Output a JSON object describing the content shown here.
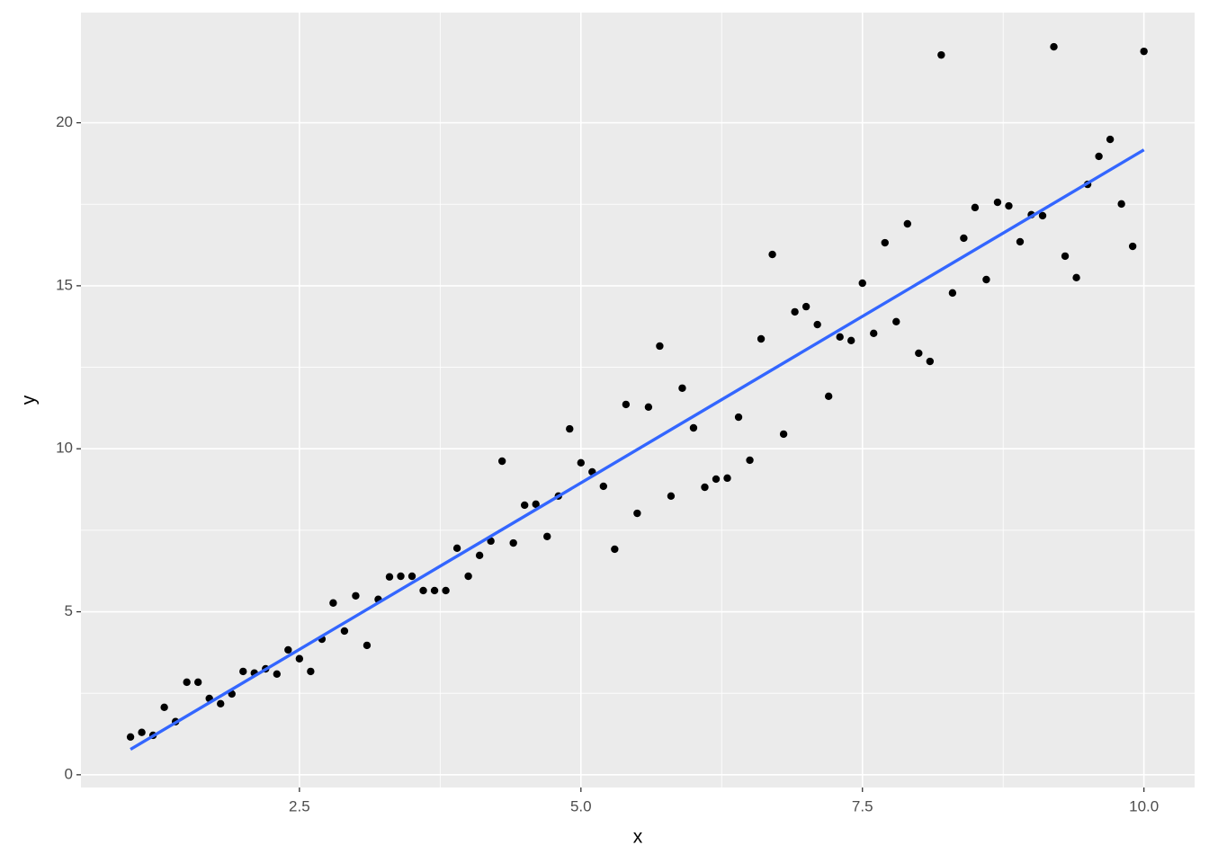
{
  "chart_data": {
    "type": "scatter",
    "x_label": "x",
    "y_label": "y",
    "x": [
      1.0,
      1.1,
      1.2,
      1.3,
      1.4,
      1.5,
      1.6,
      1.7,
      1.8,
      1.9,
      2.0,
      2.1,
      2.2,
      2.3,
      2.4,
      2.5,
      2.6,
      2.7,
      2.8,
      2.9,
      3.0,
      3.1,
      3.2,
      3.3,
      3.4,
      3.5,
      3.6,
      3.7,
      3.8,
      3.9,
      4.0,
      4.1,
      4.2,
      4.3,
      4.4,
      4.5,
      4.6,
      4.7,
      4.8,
      4.9,
      5.0,
      5.1,
      5.2,
      5.3,
      5.4,
      5.5,
      5.6,
      5.7,
      5.8,
      5.9,
      6.0,
      6.1,
      6.2,
      6.3,
      6.4,
      6.5,
      6.6,
      6.7,
      6.8,
      6.9,
      7.0,
      7.1,
      7.2,
      7.3,
      7.4,
      7.5,
      7.6,
      7.7,
      7.8,
      7.9,
      8.0,
      8.1,
      8.2,
      8.3,
      8.4,
      8.5,
      8.6,
      8.7,
      8.8,
      8.9,
      9.0,
      9.1,
      9.2,
      9.3,
      9.4,
      9.5,
      9.6,
      9.7,
      9.8,
      9.9,
      10.0
    ],
    "y": [
      1.16,
      1.3,
      1.21,
      2.07,
      1.63,
      2.84,
      2.84,
      2.34,
      2.18,
      2.48,
      3.17,
      3.12,
      3.25,
      3.09,
      3.83,
      3.56,
      3.17,
      4.16,
      5.27,
      4.41,
      5.49,
      3.97,
      5.38,
      6.07,
      6.09,
      6.09,
      5.65,
      5.65,
      5.65,
      6.95,
      6.09,
      6.73,
      7.17,
      9.62,
      7.11,
      8.27,
      8.3,
      7.31,
      8.55,
      10.61,
      9.57,
      9.29,
      8.85,
      6.92,
      11.36,
      8.02,
      11.28,
      13.15,
      8.55,
      11.86,
      10.64,
      8.82,
      9.07,
      9.1,
      10.97,
      9.65,
      13.37,
      15.96,
      10.45,
      14.2,
      14.36,
      13.81,
      11.61,
      13.43,
      13.32,
      15.08,
      13.54,
      16.32,
      13.9,
      16.9,
      12.93,
      12.68,
      22.08,
      14.78,
      16.46,
      17.4,
      15.19,
      17.56,
      17.45,
      16.35,
      17.18,
      17.15,
      22.33,
      15.91,
      15.25,
      18.11,
      18.97,
      19.49,
      17.51,
      16.21,
      22.19
    ],
    "color": "#000000",
    "trend": {
      "x": [
        1.0,
        10.0
      ],
      "y": [
        0.78,
        19.17
      ],
      "color": "#3366ff"
    },
    "xlim": [
      0.56,
      10.45
    ],
    "ylim": [
      -0.39,
      23.38
    ],
    "xticks": [
      {
        "value": 2.5,
        "label": "2.5"
      },
      {
        "value": 5,
        "label": "5.0"
      },
      {
        "value": 7.5,
        "label": "7.5"
      },
      {
        "value": 10,
        "label": "10.0"
      }
    ],
    "yticks": [
      0,
      5,
      10,
      15,
      20
    ],
    "grid": true,
    "minor_grid": true
  }
}
